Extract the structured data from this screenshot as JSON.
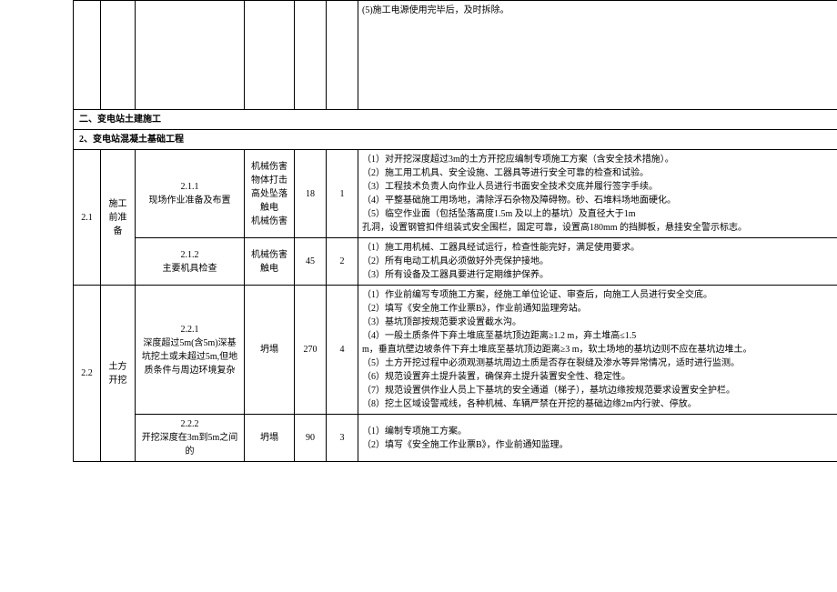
{
  "top_remnant": {
    "text": "(5)施工电源使用完毕后，及时拆除。"
  },
  "section2_title": "二、变电站土建施工",
  "subsection2_title": "2、变电站混凝土基础工程",
  "rows": [
    {
      "idx": "2.1",
      "phase": "施工前准备",
      "sub": [
        {
          "task_no": "2.1.1",
          "task_name": "现场作业准备及布置",
          "risk": "机械伤害\n物体打击\n高处坠落\n触电\n机械伤害",
          "n1": "18",
          "n2": "1",
          "desc": "（1）对开挖深度超过3m的土方开挖应编制专项施工方案（含安全技术措施）。\n（2）施工用工机具、安全设施、工器具等进行安全可靠的检查和试验。\n（3）工程技术负责人向作业人员进行书面安全技术交底并履行签字手续。\n（4）平整基础施工用场地，清除浮石杂物及障碍物。砂、石堆料场地面硬化。\n（5）临空作业面（包括坠落高度1.5m 及以上的基坑）及直径大于1m\n孔洞，设置钢管扣件组装式安全围栏，固定可靠，设置高180mm 的挡脚板，悬挂安全警示标志。"
        },
        {
          "task_no": "2.1.2",
          "task_name": "主要机具检查",
          "risk": "机械伤害\n触电",
          "n1": "45",
          "n2": "2",
          "desc": "（1）施工用机械、工器具经试运行，检查性能完好，满足使用要求。\n（2）所有电动工机具必须做好外壳保护接地。\n（3）所有设备及工器具要进行定期维护保养。"
        }
      ]
    },
    {
      "idx": "2.2",
      "phase": "土方开挖",
      "sub": [
        {
          "task_no": "2.2.1",
          "task_name": "深度超过5m(含5m)深基坑挖土或未超过5m,但地质条件与周边环境复杂",
          "risk": "坍塌",
          "n1": "270",
          "n2": "4",
          "desc": "（1）作业前编写专项施工方案，经施工单位论证、审查后，向施工人员进行安全交底。\n（2）填写《安全施工作业票B》，作业前通知监理旁站。\n（3）基坑顶部按规范要求设置截水沟。\n（4）一般土质条件下弃土堆底至基坑顶边距离≥1.2 m，弃土堆高≤1.5\nm，垂直坑壁边坡条件下弃土堆底至基坑顶边距离≥3 m，软土场地的基坑边则不应在基坑边堆土。\n（5）土方开挖过程中必须观测基坑周边土质是否存在裂缝及渗水等异常情况，适时进行监测。\n（6）规范设置弃土提升装置，确保弃土提升装置安全性、稳定性。\n（7）规范设置供作业人员上下基坑的安全通道（梯子），基坑边缘按规范要求设置安全护栏。\n（8）挖土区域设警戒线，各种机械、车辆严禁在开挖的基础边缘2m内行驶、停放。"
        },
        {
          "task_no": "2.2.2",
          "task_name": "开挖深度在3m到5m之间的",
          "risk": "坍塌",
          "n1": "90",
          "n2": "3",
          "desc": "（1）编制专项施工方案。\n（2）填写《安全施工作业票B》，作业前通知监理。"
        }
      ]
    }
  ],
  "colors": {
    "border": "#000000",
    "bg": "#ffffff",
    "text": "#000000"
  }
}
